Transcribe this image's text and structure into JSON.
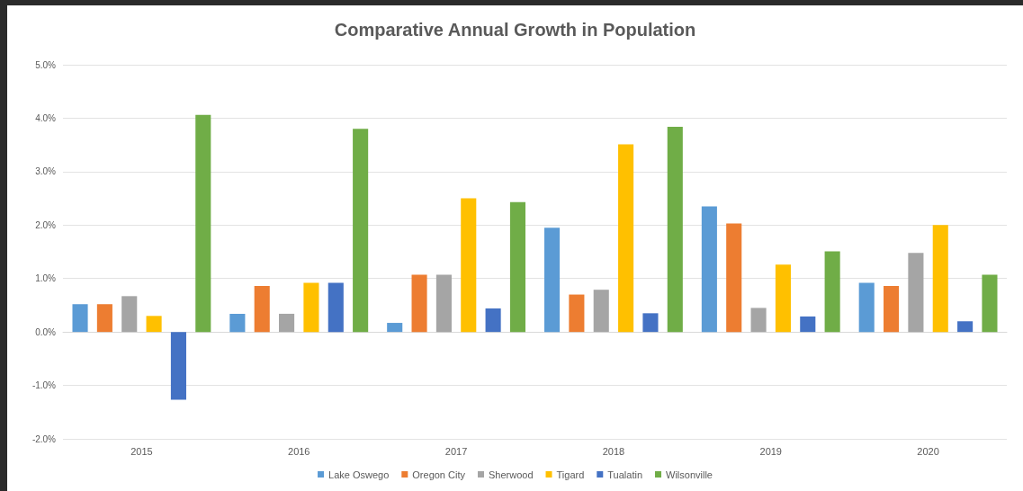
{
  "chart_data": {
    "type": "bar",
    "title": "Comparative Annual Growth in Population",
    "categories": [
      "2015",
      "2016",
      "2017",
      "2018",
      "2019",
      "2020"
    ],
    "series": [
      {
        "name": "Lake Oswego",
        "color": "#5b9bd5",
        "values": [
          0.52,
          0.34,
          0.17,
          1.95,
          2.35,
          0.92
        ]
      },
      {
        "name": "Oregon City",
        "color": "#ed7d31",
        "values": [
          0.52,
          0.86,
          1.07,
          0.7,
          2.03,
          0.86
        ]
      },
      {
        "name": "Sherwood",
        "color": "#a5a5a5",
        "values": [
          0.67,
          0.34,
          1.07,
          0.79,
          0.45,
          1.48
        ]
      },
      {
        "name": "Tigard",
        "color": "#ffc000",
        "values": [
          0.3,
          0.92,
          2.5,
          3.51,
          1.26,
          2.0
        ]
      },
      {
        "name": "Tualatin",
        "color": "#4472c4",
        "values": [
          -1.27,
          0.92,
          0.44,
          0.35,
          0.29,
          0.2
        ]
      },
      {
        "name": "Wilsonville",
        "color": "#70ad47",
        "values": [
          4.06,
          3.8,
          2.43,
          3.84,
          1.51,
          1.07
        ]
      }
    ],
    "ylim": [
      -2,
      5
    ],
    "yticks": [
      {
        "value": -2,
        "label": "-2.0%"
      },
      {
        "value": -1,
        "label": "-1.0%"
      },
      {
        "value": 0,
        "label": "0.0%"
      },
      {
        "value": 1,
        "label": "1.0%"
      },
      {
        "value": 2,
        "label": "2.0%"
      },
      {
        "value": 3,
        "label": "3.0%"
      },
      {
        "value": 4,
        "label": "4.0%"
      },
      {
        "value": 5,
        "label": "5.0%"
      }
    ],
    "grid": "y",
    "legend": "bottom"
  }
}
